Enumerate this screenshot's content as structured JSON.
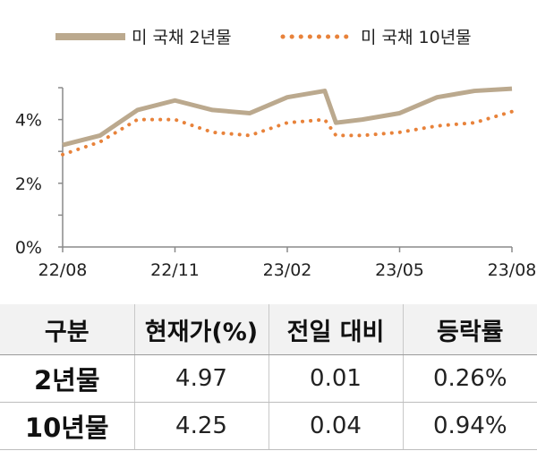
{
  "chart_data": {
    "type": "line",
    "x_ticks": [
      "22/08",
      "22/11",
      "23/02",
      "23/05",
      "23/08"
    ],
    "y_ticks": [
      "0%",
      "2%",
      "4%"
    ],
    "ylim": [
      0,
      5
    ],
    "grid": false,
    "legend_position": "top",
    "series": [
      {
        "name": "미 국채 2년물",
        "style": "solid",
        "color": "#bba98e",
        "x": [
          "22/08",
          "22/09",
          "22/10",
          "22/11",
          "22/12",
          "23/01",
          "23/02",
          "23/03",
          "23/03",
          "23/04",
          "23/05",
          "23/06",
          "23/07",
          "23/08"
        ],
        "values": [
          3.2,
          3.5,
          4.3,
          4.6,
          4.3,
          4.2,
          4.7,
          4.9,
          3.9,
          4.0,
          4.2,
          4.7,
          4.9,
          4.97
        ]
      },
      {
        "name": "미 국채 10년물",
        "style": "dotted",
        "color": "#e8823a",
        "x": [
          "22/08",
          "22/09",
          "22/10",
          "22/11",
          "22/12",
          "23/01",
          "23/02",
          "23/03",
          "23/03",
          "23/04",
          "23/05",
          "23/06",
          "23/07",
          "23/08"
        ],
        "values": [
          2.9,
          3.3,
          4.0,
          4.0,
          3.6,
          3.5,
          3.9,
          4.0,
          3.5,
          3.5,
          3.6,
          3.8,
          3.9,
          4.25
        ]
      }
    ]
  },
  "table": {
    "headers": [
      "구분",
      "현재가(%)",
      "전일 대비",
      "등락률"
    ],
    "rows": [
      [
        "2년물",
        "4.97",
        "0.01",
        "0.26%"
      ],
      [
        "10년물",
        "4.25",
        "0.04",
        "0.94%"
      ]
    ]
  }
}
